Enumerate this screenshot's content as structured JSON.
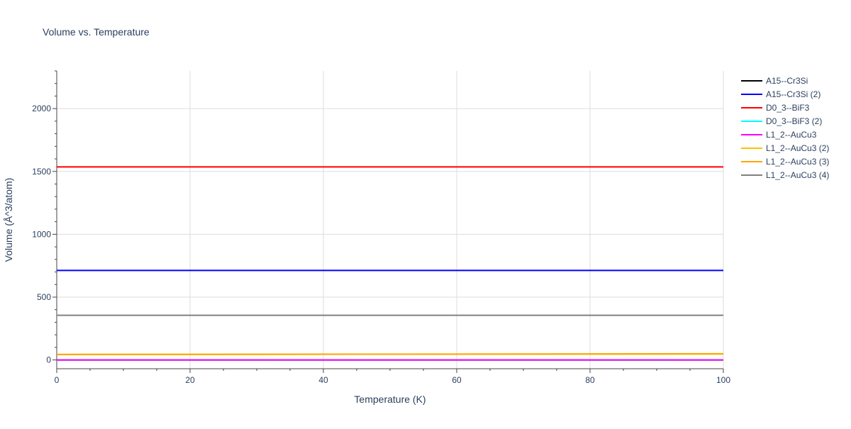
{
  "chart_data": {
    "type": "line",
    "title": "Volume vs. Temperature",
    "xlabel": "Temperature (K)",
    "ylabel": "Volume (Å^3/atom)",
    "xlim": [
      0,
      100
    ],
    "ylim": [
      -70,
      2300
    ],
    "x_ticks": [
      0,
      20,
      40,
      60,
      80,
      100
    ],
    "y_ticks": [
      0,
      500,
      1000,
      1500,
      2000
    ],
    "grid": true,
    "legend_position": "top-right outside",
    "series": [
      {
        "name": "A15--Cr3Si",
        "color": "#000000",
        "x": [
          0,
          100
        ],
        "y": [
          0,
          0
        ]
      },
      {
        "name": "A15--Cr3Si (2)",
        "color": "#0000ff",
        "x": [
          0,
          100
        ],
        "y": [
          712,
          712
        ]
      },
      {
        "name": "D0_3--BiF3",
        "color": "#ff0000",
        "x": [
          0,
          100
        ],
        "y": [
          1536,
          1536
        ]
      },
      {
        "name": "D0_3--BiF3 (2)",
        "color": "#00ffff",
        "x": [
          0,
          100
        ],
        "y": [
          0,
          0
        ]
      },
      {
        "name": "L1_2--AuCu3",
        "color": "#ff00ff",
        "x": [
          0,
          100
        ],
        "y": [
          0,
          0
        ]
      },
      {
        "name": "L1_2--AuCu3 (2)",
        "color": "#ffc000",
        "x": [
          0,
          100
        ],
        "y": [
          44,
          47
        ]
      },
      {
        "name": "L1_2--AuCu3 (3)",
        "color": "#ffa500",
        "x": [
          0,
          100
        ],
        "y": [
          43,
          49
        ]
      },
      {
        "name": "L1_2--AuCu3 (4)",
        "color": "#808080",
        "x": [
          0,
          100
        ],
        "y": [
          355,
          355
        ]
      }
    ]
  }
}
